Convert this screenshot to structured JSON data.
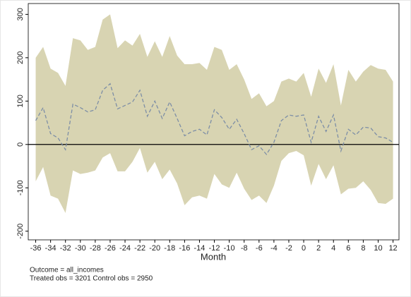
{
  "chart_data": {
    "type": "line",
    "x": [
      -36,
      -35,
      -34,
      -33,
      -32,
      -31,
      -30,
      -29,
      -28,
      -27,
      -26,
      -25,
      -24,
      -23,
      -22,
      -21,
      -20,
      -19,
      -18,
      -17,
      -16,
      -15,
      -14,
      -13,
      -12,
      -11,
      -10,
      -9,
      -8,
      -7,
      -6,
      -5,
      -4,
      -3,
      -2,
      -1,
      0,
      1,
      2,
      3,
      4,
      5,
      6,
      7,
      8,
      9,
      10,
      11,
      12
    ],
    "series": [
      {
        "color": "#7d8ea6",
        "dash": "dashed",
        "values": [
          55,
          85,
          25,
          15,
          -12,
          93,
          85,
          75,
          80,
          125,
          140,
          82,
          90,
          98,
          125,
          65,
          100,
          60,
          98,
          60,
          20,
          30,
          35,
          22,
          80,
          62,
          35,
          58,
          25,
          -12,
          -3,
          -23,
          5,
          55,
          68,
          65,
          68,
          5,
          65,
          30,
          68,
          -15,
          35,
          22,
          40,
          38,
          18,
          15,
          5
        ]
      }
    ],
    "band": {
      "color": "#d8d4b2",
      "upper": [
        200,
        225,
        175,
        165,
        135,
        245,
        240,
        218,
        225,
        288,
        300,
        222,
        240,
        228,
        255,
        202,
        238,
        202,
        250,
        205,
        185,
        185,
        188,
        172,
        225,
        218,
        172,
        185,
        150,
        105,
        118,
        88,
        100,
        145,
        152,
        145,
        165,
        110,
        175,
        142,
        185,
        90,
        172,
        145,
        168,
        183,
        175,
        172,
        145
      ],
      "lower": [
        -85,
        -52,
        -118,
        -125,
        -158,
        -60,
        -68,
        -65,
        -60,
        -30,
        -20,
        -62,
        -62,
        -40,
        -8,
        -65,
        -40,
        -80,
        -58,
        -90,
        -140,
        -122,
        -118,
        -125,
        -68,
        -92,
        -100,
        -65,
        -102,
        -128,
        -118,
        -135,
        -95,
        -38,
        -20,
        -15,
        -25,
        -95,
        -45,
        -80,
        -48,
        -115,
        -102,
        -100,
        -85,
        -105,
        -135,
        -137,
        -125
      ]
    },
    "reference_line": 0,
    "xlabel": "Month",
    "xlim": [
      -37,
      12.8
    ],
    "xticks": [
      -36,
      -34,
      -32,
      -30,
      -28,
      -26,
      -24,
      -22,
      -20,
      -18,
      -16,
      -14,
      -12,
      -10,
      -8,
      -6,
      -4,
      -2,
      0,
      2,
      4,
      6,
      8,
      10,
      12
    ],
    "ylim": [
      -220,
      325
    ],
    "yticks": [
      -200,
      -100,
      0,
      100,
      200,
      300
    ],
    "notes": [
      "Outcome = all_incomes",
      "Treated obs = 3201 Control obs = 2950"
    ]
  }
}
